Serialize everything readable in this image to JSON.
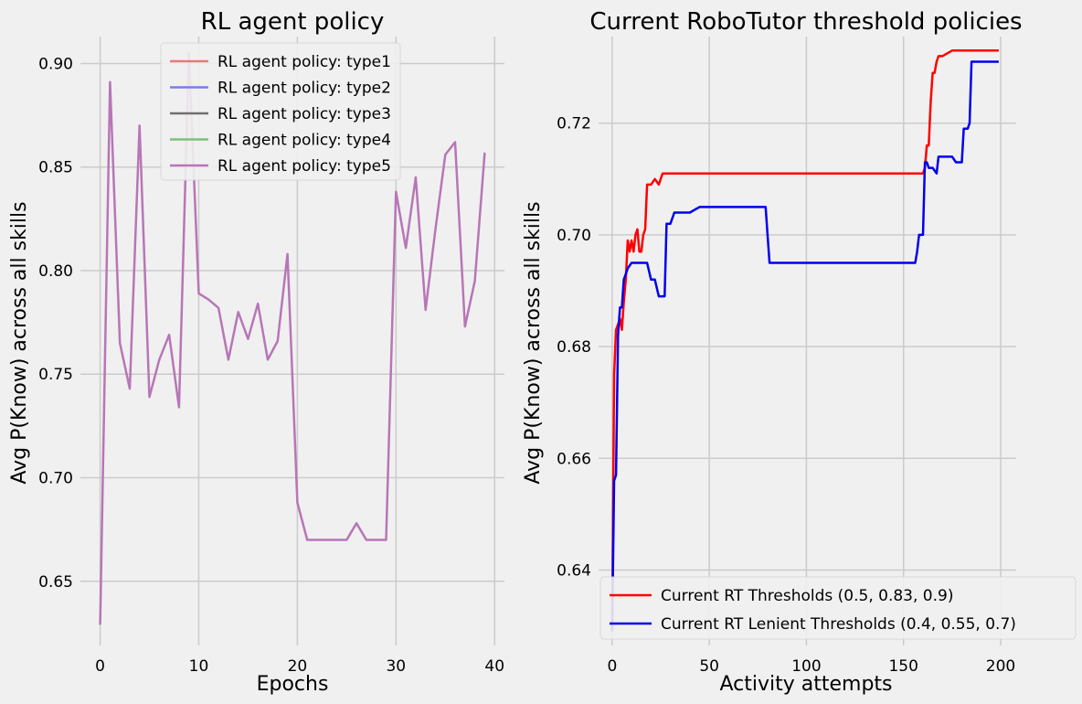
{
  "chart_data": [
    {
      "type": "line",
      "title": "RL agent policy",
      "xlabel": "Epochs",
      "ylabel": "Avg P(Know) across all skills",
      "xlim": [
        -2,
        41
      ],
      "ylim": [
        0.619,
        0.913
      ],
      "xticks": [
        0,
        10,
        20,
        30,
        40
      ],
      "yticks": [
        0.65,
        0.7,
        0.75,
        0.8,
        0.85,
        0.9
      ],
      "ytick_labels": [
        "0.65",
        "0.70",
        "0.75",
        "0.80",
        "0.85",
        "0.90"
      ],
      "grid": true,
      "legend_position": "top-center",
      "series": [
        {
          "name": "RL agent policy: type1",
          "color": "#e8787c",
          "values": []
        },
        {
          "name": "RL agent policy: type2",
          "color": "#7c7ce8",
          "values": []
        },
        {
          "name": "RL agent policy: type3",
          "color": "#707070",
          "values": []
        },
        {
          "name": "RL agent policy: type4",
          "color": "#7cc07c",
          "values": []
        },
        {
          "name": "RL agent policy: type5",
          "color": "#b776b7",
          "x": [
            0,
            1,
            2,
            3,
            4,
            5,
            6,
            7,
            8,
            9,
            10,
            11,
            12,
            13,
            14,
            15,
            16,
            17,
            18,
            19,
            20,
            21,
            22,
            23,
            24,
            25,
            26,
            27,
            28,
            29,
            30,
            31,
            32,
            33,
            34,
            35,
            36,
            37,
            38,
            39
          ],
          "values": [
            0.629,
            0.891,
            0.765,
            0.743,
            0.87,
            0.739,
            0.757,
            0.769,
            0.734,
            0.905,
            0.789,
            0.786,
            0.782,
            0.757,
            0.78,
            0.767,
            0.784,
            0.757,
            0.766,
            0.808,
            0.688,
            0.67,
            0.67,
            0.67,
            0.67,
            0.67,
            0.678,
            0.67,
            0.67,
            0.67,
            0.838,
            0.811,
            0.845,
            0.781,
            0.82,
            0.856,
            0.862,
            0.773,
            0.795,
            0.857
          ]
        }
      ]
    },
    {
      "type": "line",
      "title": "Current RoboTutor threshold policies",
      "xlabel": "Activity attempts",
      "ylabel": "Avg P(Know) across all skills",
      "xlim": [
        -7,
        208
      ],
      "ylim": [
        0.6265,
        0.7355
      ],
      "xticks": [
        0,
        50,
        100,
        150,
        200
      ],
      "yticks": [
        0.64,
        0.66,
        0.68,
        0.7,
        0.72
      ],
      "ytick_labels": [
        "0.64",
        "0.66",
        "0.68",
        "0.70",
        "0.72"
      ],
      "grid": true,
      "legend_position": "bottom-right",
      "series": [
        {
          "name": "Current RT Thresholds (0.5, 0.83, 0.9)",
          "color": "#ff0000",
          "x": [
            0,
            1,
            2,
            3,
            4,
            5,
            6,
            7,
            8,
            9,
            10,
            11,
            12,
            13,
            14,
            15,
            16,
            17,
            18,
            20,
            22,
            24,
            26,
            28,
            30,
            35,
            50,
            100,
            150,
            160,
            161,
            162,
            163,
            164,
            165,
            166,
            167,
            168,
            170,
            175,
            180,
            190,
            199
          ],
          "values": [
            0.629,
            0.675,
            0.683,
            0.684,
            0.685,
            0.683,
            0.688,
            0.692,
            0.699,
            0.697,
            0.699,
            0.697,
            0.7,
            0.701,
            0.697,
            0.697,
            0.7,
            0.701,
            0.709,
            0.709,
            0.71,
            0.709,
            0.711,
            0.711,
            0.711,
            0.711,
            0.711,
            0.711,
            0.711,
            0.711,
            0.712,
            0.716,
            0.716,
            0.724,
            0.729,
            0.729,
            0.731,
            0.732,
            0.732,
            0.733,
            0.733,
            0.733,
            0.733
          ]
        },
        {
          "name": "Current RT Lenient Thresholds (0.4, 0.55, 0.7)",
          "color": "#0000ee",
          "x": [
            0,
            1,
            2,
            3,
            4,
            5,
            6,
            7,
            8,
            10,
            12,
            15,
            18,
            20,
            21,
            22,
            24,
            25,
            26,
            27,
            28,
            30,
            32,
            35,
            38,
            40,
            45,
            50,
            60,
            70,
            79,
            80,
            81,
            82,
            90,
            100,
            150,
            156,
            157,
            158,
            160,
            161,
            162,
            163,
            164,
            165,
            167,
            168,
            169,
            170,
            175,
            177,
            178,
            180,
            181,
            182,
            183,
            184,
            185,
            190,
            195,
            199
          ],
          "values": [
            0.629,
            0.656,
            0.657,
            0.682,
            0.687,
            0.687,
            0.692,
            0.693,
            0.694,
            0.695,
            0.695,
            0.695,
            0.695,
            0.692,
            0.692,
            0.692,
            0.689,
            0.689,
            0.689,
            0.689,
            0.702,
            0.702,
            0.704,
            0.704,
            0.704,
            0.704,
            0.705,
            0.705,
            0.705,
            0.705,
            0.705,
            0.7,
            0.695,
            0.695,
            0.695,
            0.695,
            0.695,
            0.695,
            0.697,
            0.7,
            0.7,
            0.713,
            0.713,
            0.712,
            0.712,
            0.712,
            0.711,
            0.714,
            0.714,
            0.714,
            0.714,
            0.713,
            0.713,
            0.713,
            0.719,
            0.719,
            0.719,
            0.72,
            0.731,
            0.731,
            0.731,
            0.731
          ]
        }
      ]
    }
  ]
}
